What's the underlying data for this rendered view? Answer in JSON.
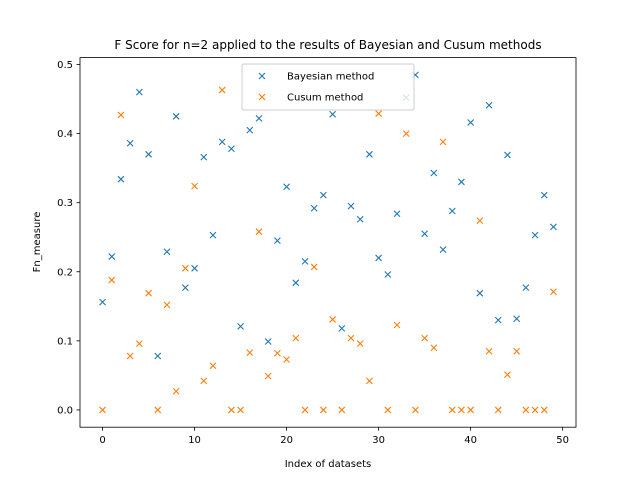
{
  "chart_data": {
    "type": "scatter",
    "title": "F Score for n=2 applied to the results of Bayesian and Cusum methods",
    "xlabel": "Index of datasets",
    "ylabel": "Fn_measure",
    "xlim": [
      -2.45,
      51.45
    ],
    "ylim": [
      -0.025,
      0.51
    ],
    "xticks": [
      0,
      10,
      20,
      30,
      40,
      50
    ],
    "xtick_labels": [
      "0",
      "10",
      "20",
      "30",
      "40",
      "50"
    ],
    "yticks": [
      0.0,
      0.1,
      0.2,
      0.3,
      0.4,
      0.5
    ],
    "ytick_labels": [
      "0.0",
      "0.1",
      "0.2",
      "0.3",
      "0.4",
      "0.5"
    ],
    "legend_position": "top-center",
    "marker": "x",
    "grid": false,
    "series": [
      {
        "name": "Bayesian method",
        "color": "#1f77b4",
        "x": [
          0,
          1,
          2,
          3,
          4,
          5,
          6,
          7,
          8,
          9,
          10,
          11,
          12,
          13,
          14,
          15,
          16,
          17,
          18,
          19,
          20,
          21,
          22,
          23,
          24,
          25,
          26,
          27,
          28,
          29,
          30,
          31,
          32,
          33,
          34,
          35,
          36,
          37,
          38,
          39,
          40,
          41,
          42,
          43,
          44,
          45,
          46,
          47,
          48,
          49
        ],
        "values": [
          0.156,
          0.222,
          0.334,
          0.386,
          0.46,
          0.37,
          0.078,
          0.229,
          0.425,
          0.177,
          0.205,
          0.366,
          0.253,
          0.388,
          0.378,
          0.121,
          0.405,
          0.422,
          0.099,
          0.245,
          0.323,
          0.184,
          0.215,
          0.292,
          0.311,
          0.428,
          0.118,
          0.295,
          0.276,
          0.37,
          0.22,
          0.196,
          0.284,
          0.452,
          0.485,
          0.255,
          0.343,
          0.232,
          0.288,
          0.33,
          0.416,
          0.169,
          0.441,
          0.13,
          0.369,
          0.132,
          0.177,
          0.253,
          0.311,
          0.265
        ]
      },
      {
        "name": "Cusum method",
        "color": "#ff7f0e",
        "x": [
          0,
          1,
          2,
          3,
          4,
          5,
          6,
          7,
          8,
          9,
          10,
          11,
          12,
          13,
          14,
          15,
          16,
          17,
          18,
          19,
          20,
          21,
          22,
          23,
          24,
          25,
          26,
          27,
          28,
          29,
          30,
          31,
          32,
          33,
          34,
          35,
          36,
          37,
          38,
          39,
          40,
          41,
          42,
          43,
          44,
          45,
          46,
          47,
          48,
          49
        ],
        "values": [
          0.0,
          0.188,
          0.427,
          0.078,
          0.096,
          0.169,
          0.0,
          0.152,
          0.027,
          0.205,
          0.324,
          0.042,
          0.064,
          0.463,
          0.0,
          0.0,
          0.083,
          0.258,
          0.049,
          0.082,
          0.073,
          0.104,
          0.0,
          0.207,
          0.0,
          0.131,
          0.0,
          0.104,
          0.096,
          0.042,
          0.429,
          0.0,
          0.123,
          0.4,
          0.0,
          0.104,
          0.09,
          0.388,
          0.0,
          0.0,
          0.0,
          0.274,
          0.085,
          0.0,
          0.051,
          0.085,
          0.0,
          0.0,
          0.0,
          0.171
        ]
      }
    ]
  }
}
